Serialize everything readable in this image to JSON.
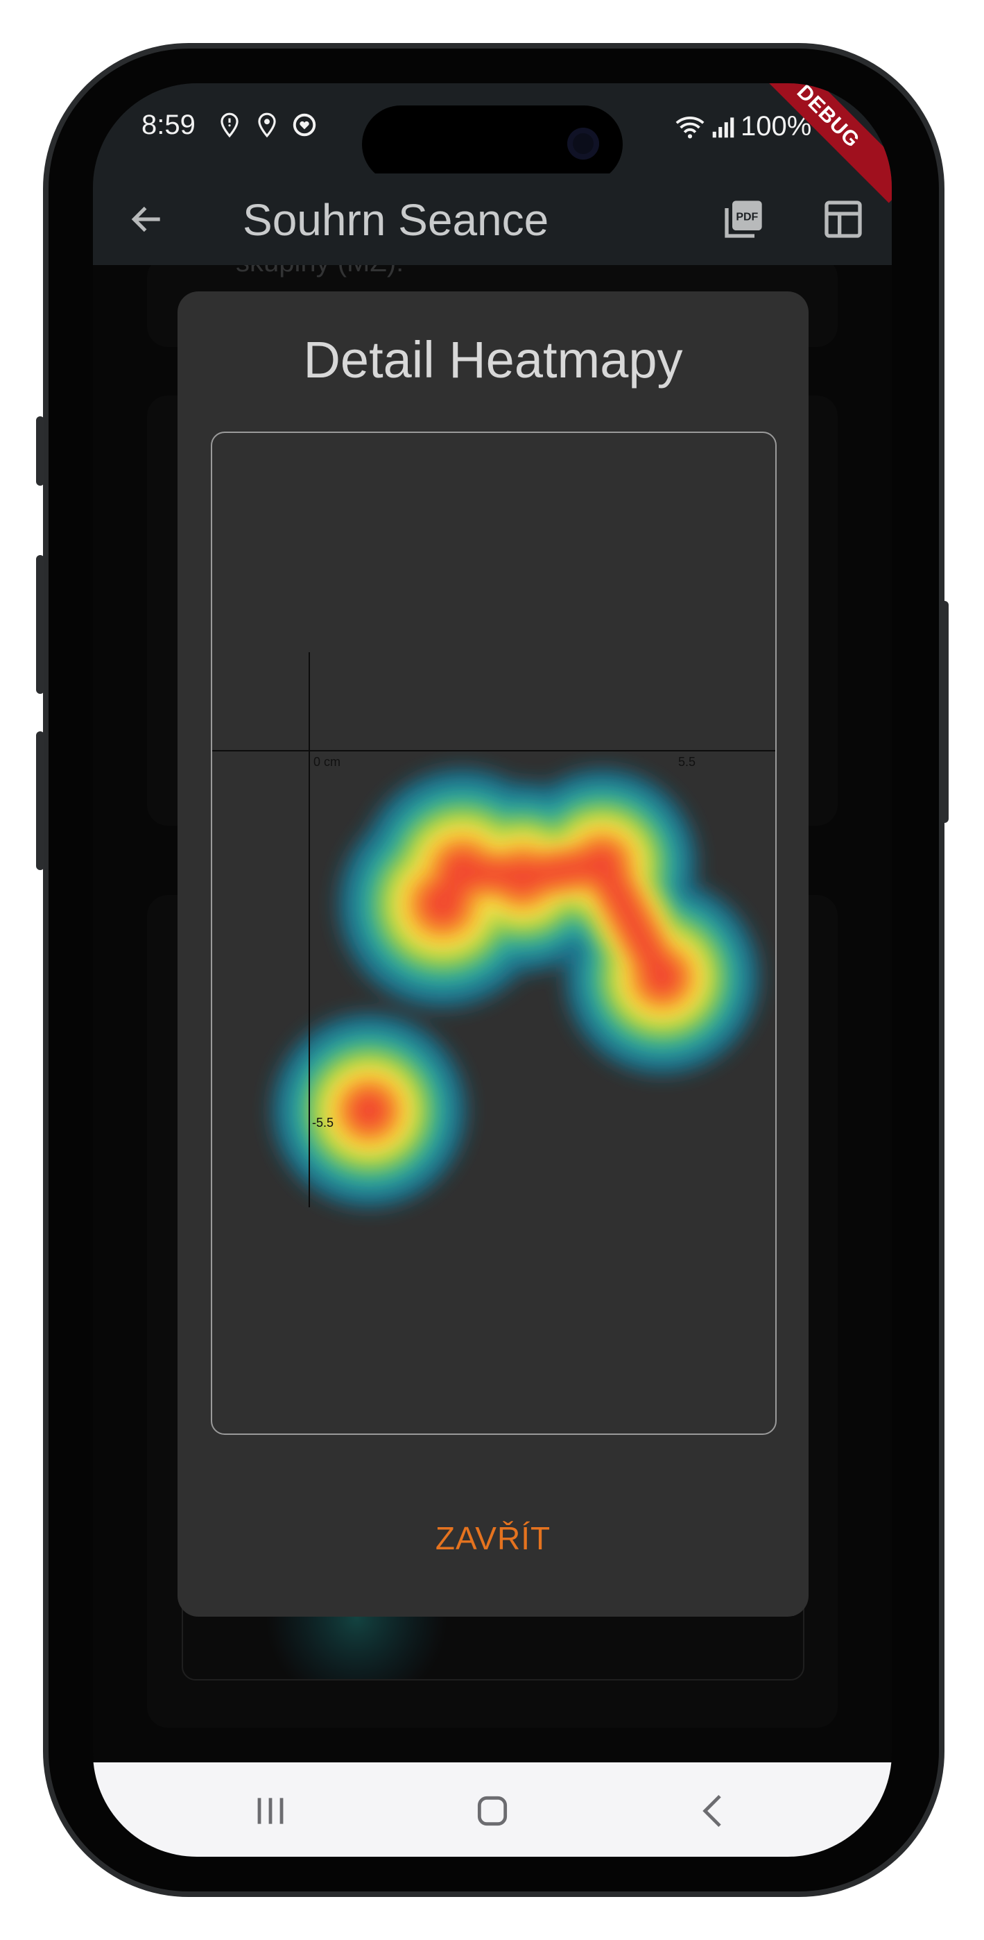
{
  "status_bar": {
    "time": "8:59",
    "battery": "100%"
  },
  "app_bar": {
    "title": "Souhrn Seance"
  },
  "debug_banner": "DEBUG",
  "background": {
    "peek_text": "skupiny (MZ):"
  },
  "dialog": {
    "title": "Detail Heatmapy",
    "close_label": "ZAVŘÍT",
    "heatmap": {
      "x_label_origin": "0 cm",
      "x_label_end": "5.5",
      "y_label": "-5.5"
    }
  },
  "chart_data": {
    "type": "heatmap",
    "title": "Detail Heatmapy",
    "unit": "cm",
    "axes": {
      "x_tick_labels": [
        "0 cm",
        "5.5"
      ],
      "y_tick_labels": [
        "-5.5"
      ]
    },
    "hotspots": [
      {
        "x": 0.9,
        "y": -5.4,
        "intensity": 0.85
      },
      {
        "x": 2.0,
        "y": -2.3,
        "intensity": 1.0
      },
      {
        "x": 2.3,
        "y": -1.8,
        "intensity": 0.95
      },
      {
        "x": 3.2,
        "y": -1.9,
        "intensity": 0.8
      },
      {
        "x": 4.4,
        "y": -1.7,
        "intensity": 0.8
      },
      {
        "x": 5.3,
        "y": -3.4,
        "intensity": 0.85
      }
    ],
    "colormap": [
      "#1f6f8b",
      "#2aa7a0",
      "#8fcc4a",
      "#f4e34a",
      "#f7a52a",
      "#f24a2e"
    ]
  },
  "colors": {
    "accent": "#e5731f",
    "dialog_bg": "#303030",
    "appbar_bg": "#1c2023"
  }
}
